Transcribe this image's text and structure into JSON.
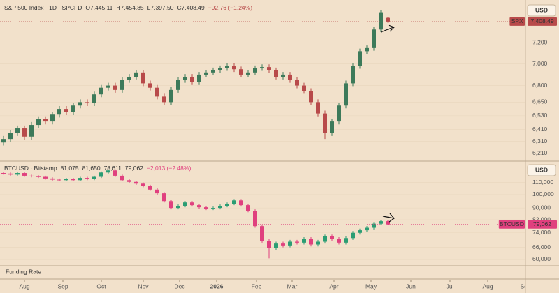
{
  "chart_data": [
    {
      "type": "candlestick",
      "title": "S&P 500 Index · 1D · SPCFD",
      "legend": [
        "O7,445.11",
        "H7,454.85",
        "L7,397.50",
        "C7,408.49",
        "−92.76 (−1.24%)"
      ],
      "currency": "USD",
      "last_price": {
        "symbol": "SPX",
        "label": "7,408.49"
      },
      "up_color": "#3d7a5a",
      "down_color": "#b84a4a",
      "log_scale": true,
      "xlim": [
        -0.5,
        74.7
      ],
      "ylim": [
        6150,
        7590
      ],
      "yticks": [
        {
          "value": 7200,
          "label": "7,200"
        },
        {
          "value": 7000,
          "label": "7,000"
        },
        {
          "value": 6800,
          "label": "6,800"
        },
        {
          "value": 6650,
          "label": "6,650"
        },
        {
          "value": 6530,
          "label": "6,530"
        },
        {
          "value": 6410,
          "label": "6,410"
        },
        {
          "value": 6310,
          "label": "6,310"
        },
        {
          "value": 6210,
          "label": "6,210"
        }
      ],
      "open": [
        6300,
        6330,
        6380,
        6420,
        6350,
        6450,
        6500,
        6480,
        6540,
        6590,
        6560,
        6620,
        6650,
        6640,
        6720,
        6780,
        6800,
        6760,
        6850,
        6880,
        6920,
        6820,
        6780,
        6700,
        6650,
        6760,
        6850,
        6880,
        6830,
        6900,
        6920,
        6940,
        6960,
        6980,
        6950,
        6900,
        6920,
        6960,
        6970,
        6940,
        6880,
        6900,
        6850,
        6800,
        6750,
        6650,
        6550,
        6380,
        6480,
        6620,
        6820,
        6980,
        7120,
        7150,
        7330,
        7445.11
      ],
      "high": [
        6355,
        6405,
        6445,
        6445,
        6475,
        6525,
        6525,
        6565,
        6615,
        6615,
        6645,
        6675,
        6675,
        6745,
        6805,
        6825,
        6825,
        6875,
        6905,
        6945,
        6945,
        6845,
        6805,
        6725,
        6785,
        6875,
        6905,
        6905,
        6925,
        6945,
        6965,
        6985,
        7005,
        7005,
        6975,
        6945,
        6985,
        6995,
        6995,
        6965,
        6925,
        6925,
        6875,
        6825,
        6775,
        6675,
        6575,
        6505,
        6645,
        6845,
        7005,
        7145,
        7175,
        7355,
        7526,
        7454.85
      ],
      "low": [
        6275,
        6305,
        6355,
        6325,
        6325,
        6425,
        6455,
        6455,
        6515,
        6535,
        6535,
        6595,
        6615,
        6615,
        6695,
        6755,
        6735,
        6735,
        6825,
        6855,
        6795,
        6755,
        6675,
        6625,
        6625,
        6735,
        6825,
        6805,
        6805,
        6875,
        6895,
        6915,
        6935,
        6925,
        6875,
        6875,
        6895,
        6935,
        6915,
        6855,
        6855,
        6825,
        6775,
        6725,
        6625,
        6525,
        6330,
        6355,
        6455,
        6595,
        6795,
        6955,
        7095,
        7125,
        7305,
        7397.5
      ],
      "close": [
        6330,
        6380,
        6420,
        6350,
        6450,
        6500,
        6480,
        6540,
        6590,
        6560,
        6620,
        6650,
        6640,
        6720,
        6780,
        6800,
        6760,
        6850,
        6880,
        6920,
        6820,
        6780,
        6700,
        6650,
        6760,
        6850,
        6880,
        6830,
        6900,
        6920,
        6940,
        6960,
        6980,
        6950,
        6900,
        6920,
        6960,
        6970,
        6940,
        6880,
        6900,
        6850,
        6800,
        6750,
        6650,
        6550,
        6380,
        6480,
        6620,
        6820,
        6980,
        7120,
        7150,
        7330,
        7501.25,
        7408.49
      ]
    },
    {
      "type": "candlestick",
      "title": "BTCUSD · Bitstamp",
      "legend": [
        "81,075",
        "81,650",
        "78,611",
        "79,062",
        "−2,013 (−2.48%)"
      ],
      "currency": "USD",
      "last_price": {
        "symbol": "BTCUSD",
        "label": "79,062"
      },
      "up_color": "#2a9d73",
      "down_color": "#e0407e",
      "log_scale": true,
      "xlim": [
        -0.5,
        74.7
      ],
      "ylim": [
        57400,
        128000
      ],
      "yticks": [
        {
          "value": 110000,
          "label": "110,000"
        },
        {
          "value": 100000,
          "label": "100,000"
        },
        {
          "value": 90000,
          "label": "90,000"
        },
        {
          "value": 82000,
          "label": "82,000"
        },
        {
          "value": 74000,
          "label": "74,000"
        },
        {
          "value": 66000,
          "label": "66,000"
        },
        {
          "value": 60000,
          "label": "60,000"
        }
      ],
      "xticks": [
        {
          "value": 3,
          "label": "Aug"
        },
        {
          "value": 8.5,
          "label": "Sep"
        },
        {
          "value": 14,
          "label": "Oct"
        },
        {
          "value": 20,
          "label": "Nov"
        },
        {
          "value": 25.2,
          "label": "Dec"
        },
        {
          "value": 30.5,
          "label": "2026"
        },
        {
          "value": 36.2,
          "label": "Feb"
        },
        {
          "value": 41.3,
          "label": "Mar"
        },
        {
          "value": 47.3,
          "label": "Apr"
        },
        {
          "value": 52.6,
          "label": "May"
        },
        {
          "value": 58.3,
          "label": "Jun"
        },
        {
          "value": 63.9,
          "label": "Jul"
        },
        {
          "value": 69.3,
          "label": "Aug"
        },
        {
          "value": 74.7,
          "label": "Sep"
        }
      ],
      "open": [
        118500,
        118000,
        117000,
        118500,
        116000,
        115500,
        115000,
        113500,
        112500,
        112000,
        113000,
        112000,
        114000,
        113000,
        115000,
        119000,
        121000,
        116000,
        112000,
        110500,
        109000,
        107000,
        104000,
        101000,
        95000,
        90000,
        91500,
        94000,
        92000,
        90500,
        89500,
        90000,
        91500,
        93000,
        95500,
        92000,
        88000,
        78000,
        69500,
        65500,
        68000,
        67000,
        69000,
        68500,
        70500,
        67500,
        69000,
        72000,
        70500,
        68500,
        71000,
        74000,
        75500,
        77000,
        79500,
        81075
      ],
      "high": [
        119500,
        119000,
        119500,
        119500,
        117000,
        116500,
        116000,
        114500,
        113500,
        114000,
        114000,
        115000,
        115000,
        116000,
        120000,
        122000,
        122000,
        117000,
        113000,
        111500,
        110000,
        108000,
        105000,
        102000,
        96000,
        92500,
        95000,
        95000,
        93000,
        91500,
        91000,
        92500,
        94000,
        96500,
        96500,
        93000,
        89000,
        79000,
        70500,
        69000,
        69000,
        70000,
        70000,
        71500,
        71500,
        70000,
        73000,
        73000,
        71500,
        72000,
        75000,
        76500,
        78000,
        80500,
        82000,
        81650
      ],
      "low": [
        117000,
        116000,
        116000,
        115000,
        114500,
        114000,
        112500,
        111500,
        111000,
        111000,
        111000,
        111000,
        112000,
        112000,
        114000,
        118000,
        115000,
        111000,
        109500,
        108000,
        106000,
        103000,
        100000,
        94000,
        89000,
        89000,
        90500,
        91000,
        89500,
        88500,
        88500,
        89000,
        90500,
        92000,
        91000,
        87000,
        77000,
        68500,
        60500,
        64500,
        66000,
        66000,
        67500,
        67500,
        66500,
        66500,
        68000,
        69500,
        67500,
        67500,
        70000,
        73000,
        74500,
        76000,
        78500,
        78611
      ],
      "close": [
        118000,
        117000,
        118500,
        116000,
        115500,
        115000,
        113500,
        112500,
        112000,
        113000,
        112000,
        114000,
        113000,
        115000,
        119000,
        121000,
        116000,
        112000,
        110500,
        109000,
        107000,
        104000,
        101000,
        95000,
        90000,
        91500,
        94000,
        92000,
        90500,
        89500,
        90000,
        91500,
        93000,
        95500,
        92000,
        88000,
        78000,
        69500,
        65500,
        68000,
        67000,
        69000,
        68500,
        70500,
        67500,
        69000,
        72000,
        70500,
        68500,
        71000,
        74000,
        75500,
        77000,
        79500,
        81075,
        79062
      ]
    }
  ],
  "indicator_pane": {
    "title": "Funding Rate"
  }
}
